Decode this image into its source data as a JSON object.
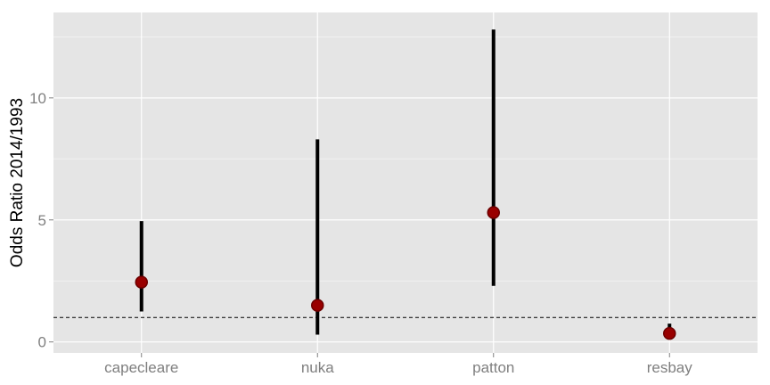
{
  "chart_data": {
    "type": "scatter",
    "ylabel": "Odds Ratio 2014/1993",
    "xlabel": "",
    "categories": [
      "capecleare",
      "nuka",
      "patton",
      "resbay"
    ],
    "points": [
      {
        "category": "capecleare",
        "estimate": 2.45,
        "lower": 1.25,
        "upper": 4.95
      },
      {
        "category": "nuka",
        "estimate": 1.5,
        "lower": 0.3,
        "upper": 8.3
      },
      {
        "category": "patton",
        "estimate": 5.3,
        "lower": 2.3,
        "upper": 12.8
      },
      {
        "category": "resbay",
        "estimate": 0.35,
        "lower": 0.25,
        "upper": 0.75
      }
    ],
    "reference_line": {
      "y": 1,
      "style": "dashed"
    },
    "ylim": [
      -0.45,
      13.5
    ],
    "yticks": [
      0,
      5,
      10
    ],
    "ytick_labels": [
      "0",
      "5",
      "10"
    ],
    "grid": true,
    "colors": {
      "panel": "#e5e5e5",
      "grid_major": "#ffffff",
      "grid_minor": "#f2f2f2",
      "interval": "#000000",
      "point": "#990000",
      "point_outline": "#6b0000"
    }
  }
}
